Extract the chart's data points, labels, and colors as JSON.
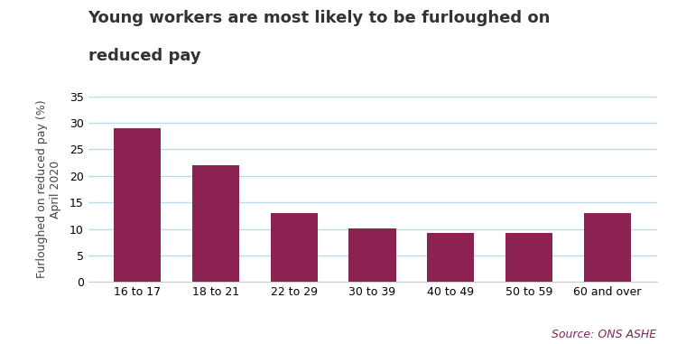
{
  "title_line1": "Young workers are most likely to be furloughed on",
  "title_line2": "reduced pay",
  "categories": [
    "16 to 17",
    "18 to 21",
    "22 to 29",
    "30 to 39",
    "40 to 49",
    "50 to 59",
    "60 and over"
  ],
  "values": [
    29.0,
    22.0,
    13.0,
    10.1,
    9.3,
    9.3,
    13.0
  ],
  "bar_color": "#8B2252",
  "ylabel_line1": "Furloughed on reduced pay (%)",
  "ylabel_line2": "April 2020",
  "ylim": [
    0,
    35
  ],
  "yticks": [
    0,
    5,
    10,
    15,
    20,
    25,
    30,
    35
  ],
  "grid_color": "#b8dce8",
  "background_color": "#FFFFFF",
  "source_text": "Source: ONS ASHE",
  "source_color": "#8B2252",
  "title_fontsize": 13,
  "label_fontsize": 9,
  "tick_fontsize": 9,
  "source_fontsize": 9
}
